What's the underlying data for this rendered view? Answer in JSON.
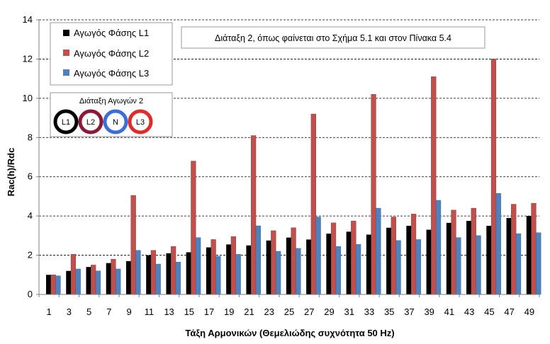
{
  "chart_data": {
    "type": "bar",
    "title": "",
    "xlabel": "Τάξη Αρμονικών (Θεμελιώδης συχνότητα 50 Hz)",
    "ylabel": "Rac(h)/Rdc",
    "ylim": [
      0,
      14
    ],
    "yticks": [
      0,
      2,
      4,
      6,
      8,
      10,
      12,
      14
    ],
    "grid": "horizontal dashed",
    "legend_position": "top-left",
    "categories": [
      "1",
      "3",
      "5",
      "7",
      "9",
      "11",
      "13",
      "15",
      "17",
      "19",
      "21",
      "23",
      "25",
      "27",
      "29",
      "31",
      "33",
      "35",
      "37",
      "39",
      "41",
      "43",
      "45",
      "47",
      "49"
    ],
    "series": [
      {
        "name": "Αγωγός Φάσης L1",
        "color": "#000000",
        "values": [
          1.0,
          1.2,
          1.4,
          1.6,
          1.7,
          2.0,
          2.1,
          2.15,
          2.4,
          2.55,
          2.5,
          2.75,
          2.9,
          2.8,
          3.1,
          3.2,
          3.05,
          3.4,
          3.5,
          3.3,
          3.65,
          3.75,
          3.5,
          3.9,
          4.0
        ]
      },
      {
        "name": "Αγωγός Φάσης L2",
        "color": "#c0504d",
        "values": [
          1.0,
          2.05,
          1.5,
          1.8,
          5.05,
          2.25,
          2.45,
          6.8,
          2.8,
          2.95,
          8.1,
          3.25,
          3.4,
          9.2,
          3.65,
          3.75,
          10.2,
          3.95,
          4.1,
          11.1,
          4.3,
          4.4,
          12.0,
          4.6,
          4.65
        ]
      },
      {
        "name": "Αγωγός Φάσης L3",
        "color": "#4f81bd",
        "values": [
          0.95,
          1.3,
          1.2,
          1.3,
          2.25,
          1.55,
          1.65,
          2.9,
          1.95,
          2.05,
          3.5,
          2.2,
          2.35,
          3.95,
          2.45,
          2.55,
          4.4,
          2.75,
          2.8,
          4.8,
          2.9,
          3.0,
          5.15,
          3.1,
          3.15
        ]
      }
    ],
    "annotation": "Διάταξη 2, όπως φαίνεται στο Σχήμα 5.1 και στον Πίνακα 5.4",
    "conductor_layout": {
      "title": "Διάταξη Αγωγών 2",
      "conductors": [
        {
          "label": "L1",
          "color": "#000000"
        },
        {
          "label": "L2",
          "color": "#8b1a3a"
        },
        {
          "label": "N",
          "color": "#3b6fd6"
        },
        {
          "label": "L3",
          "color": "#e02b2b"
        }
      ]
    }
  }
}
